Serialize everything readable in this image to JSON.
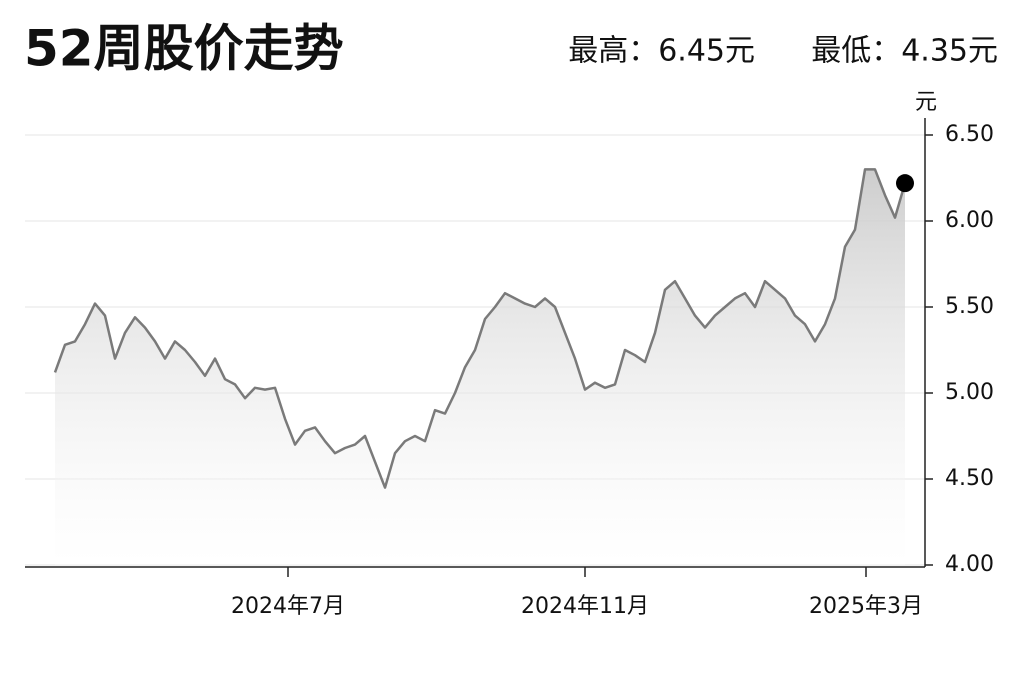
{
  "chart_data": {
    "type": "line",
    "title": "52周股价走势",
    "high_label": "最高：6.45元",
    "low_label": "最低：4.35元",
    "y_unit": "元",
    "color": "#7a7a7a",
    "values": [
      5.12,
      5.28,
      5.3,
      5.4,
      5.52,
      5.45,
      5.2,
      5.35,
      5.44,
      5.38,
      5.3,
      5.2,
      5.3,
      5.25,
      5.18,
      5.1,
      5.2,
      5.08,
      5.05,
      4.97,
      5.03,
      5.02,
      5.03,
      4.85,
      4.7,
      4.78,
      4.8,
      4.72,
      4.65,
      4.68,
      4.7,
      4.75,
      4.6,
      4.45,
      4.65,
      4.72,
      4.75,
      4.72,
      4.9,
      4.88,
      5.0,
      5.15,
      5.25,
      5.43,
      5.5,
      5.58,
      5.55,
      5.52,
      5.5,
      5.55,
      5.5,
      5.35,
      5.2,
      5.02,
      5.06,
      5.03,
      5.05,
      5.25,
      5.22,
      5.18,
      5.35,
      5.6,
      5.65,
      5.55,
      5.45,
      5.38,
      5.45,
      5.5,
      5.55,
      5.58,
      5.5,
      5.65,
      5.6,
      5.55,
      5.45,
      5.4,
      5.3,
      5.4,
      5.55,
      5.85,
      5.95,
      6.3,
      6.3,
      6.15,
      6.02,
      6.22
    ],
    "xlim": [
      -3,
      87
    ],
    "xticks": [
      {
        "value": 23.3,
        "label": "2024年7月"
      },
      {
        "value": 53,
        "label": "2024年11月"
      },
      {
        "value": 81.1,
        "label": "2025年3月"
      }
    ],
    "ylim": [
      4.0,
      6.5
    ],
    "yticks": [
      {
        "value": 4.0,
        "label": "4.00"
      },
      {
        "value": 4.5,
        "label": "4.50"
      },
      {
        "value": 5.0,
        "label": "5.00"
      },
      {
        "value": 5.5,
        "label": "5.50"
      },
      {
        "value": 6.0,
        "label": "6.00"
      },
      {
        "value": 6.5,
        "label": "6.50"
      }
    ],
    "grid": true
  }
}
